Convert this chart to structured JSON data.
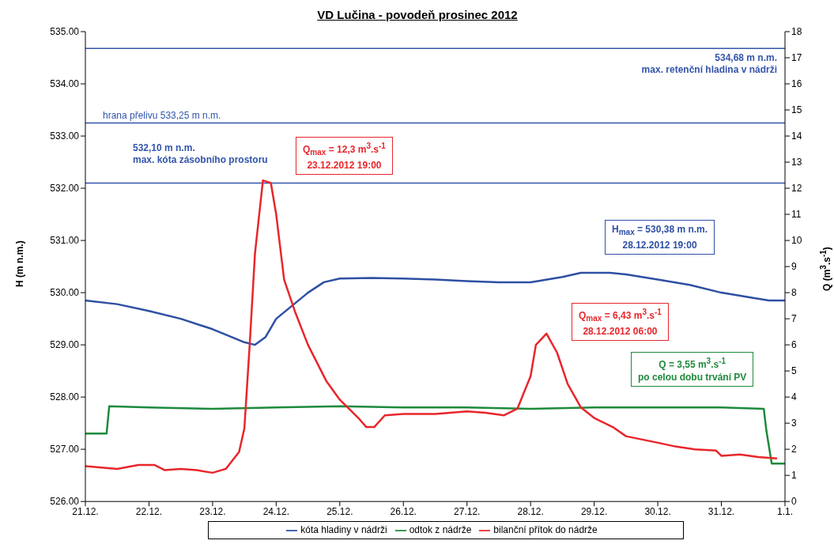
{
  "chart_data": {
    "type": "line",
    "title": "VD Lučina - povodeň prosinec 2012",
    "ylabel": "H (m n.m.)",
    "y2label": "Q (m$^{3}$.s$^{-1}$)",
    "xlim": [
      "2012-12-21",
      "2013-01-01"
    ],
    "xticks": [
      {
        "value": "2012-12-21",
        "label": "21.12."
      },
      {
        "value": "2012-12-22",
        "label": "22.12."
      },
      {
        "value": "2012-12-23",
        "label": "23.12."
      },
      {
        "value": "2012-12-24",
        "label": "24.12."
      },
      {
        "value": "2012-12-25",
        "label": "25.12."
      },
      {
        "value": "2012-12-26",
        "label": "26.12."
      },
      {
        "value": "2012-12-27",
        "label": "27.12."
      },
      {
        "value": "2012-12-28",
        "label": "28.12."
      },
      {
        "value": "2012-12-29",
        "label": "29.12."
      },
      {
        "value": "2012-12-30",
        "label": "30.12."
      },
      {
        "value": "2012-12-31",
        "label": "31.12."
      },
      {
        "value": "2013-01-01",
        "label": "1.1."
      }
    ],
    "ylim": [
      526,
      535
    ],
    "yticks": [
      {
        "value": 526,
        "label": "526.00"
      },
      {
        "value": 527,
        "label": "527.00"
      },
      {
        "value": 528,
        "label": "528.00"
      },
      {
        "value": 529,
        "label": "529.00"
      },
      {
        "value": 530,
        "label": "530.00"
      },
      {
        "value": 531,
        "label": "531.00"
      },
      {
        "value": 532,
        "label": "532.00"
      },
      {
        "value": 533,
        "label": "533.00"
      },
      {
        "value": 534,
        "label": "534.00"
      },
      {
        "value": 535,
        "label": "535.00"
      }
    ],
    "y2lim": [
      0,
      18
    ],
    "y2ticks": [
      0,
      1,
      2,
      3,
      4,
      5,
      6,
      7,
      8,
      9,
      10,
      11,
      12,
      13,
      14,
      15,
      16,
      17,
      18
    ],
    "legend": "bottom",
    "marker": "none",
    "line_style": "solid",
    "series": [
      {
        "name": "kóta hladiny v nádrži",
        "color": "#2e4fa3",
        "x": [
          "2012-12-21T00:00",
          "2012-12-21T12:00",
          "2012-12-22T00:00",
          "2012-12-22T12:00",
          "2012-12-23T00:00",
          "2012-12-23T12:00",
          "2012-12-23T16:00",
          "2012-12-23T20:00",
          "2012-12-24T00:00",
          "2012-12-24T06:00",
          "2012-12-24T12:00",
          "2012-12-24T18:00",
          "2012-12-25T00:00",
          "2012-12-25T12:00",
          "2012-12-26T00:00",
          "2012-12-26T12:00",
          "2012-12-27T00:00",
          "2012-12-27T12:00",
          "2012-12-28T00:00",
          "2012-12-28T12:00",
          "2012-12-28T19:00",
          "2012-12-29T06:00",
          "2012-12-29T12:00",
          "2012-12-30T00:00",
          "2012-12-30T12:00",
          "2012-12-31T00:00",
          "2012-12-31T12:00",
          "2012-12-31T18:00",
          "2013-01-01T00:00"
        ],
        "values": [
          529.85,
          529.78,
          529.65,
          529.5,
          529.3,
          529.05,
          529.0,
          529.15,
          529.5,
          529.75,
          530.0,
          530.2,
          530.27,
          530.28,
          530.27,
          530.25,
          530.22,
          530.2,
          530.2,
          530.3,
          530.38,
          530.38,
          530.35,
          530.25,
          530.15,
          530.0,
          529.9,
          529.85,
          529.85
        ]
      },
      {
        "name": "odtok z nádrže",
        "color": "#1e8a3c",
        "axis": "y2",
        "x": [
          "2012-12-21T00:00",
          "2012-12-21T08:00",
          "2012-12-21T09:00",
          "2012-12-22T00:00",
          "2012-12-23T00:00",
          "2012-12-24T00:00",
          "2012-12-25T00:00",
          "2012-12-26T00:00",
          "2012-12-27T00:00",
          "2012-12-28T00:00",
          "2012-12-29T00:00",
          "2012-12-30T00:00",
          "2012-12-31T00:00",
          "2012-12-31T16:00",
          "2012-12-31T17:00",
          "2012-12-31T19:00",
          "2013-01-01T00:00"
        ],
        "values": [
          2.6,
          2.6,
          3.65,
          3.6,
          3.55,
          3.6,
          3.65,
          3.6,
          3.6,
          3.55,
          3.6,
          3.6,
          3.6,
          3.55,
          2.7,
          1.45,
          1.45
        ]
      },
      {
        "name": "bilanční přítok do nádrže",
        "color": "#e8262b",
        "axis": "y2",
        "x": [
          "2012-12-21T00:00",
          "2012-12-21T12:00",
          "2012-12-21T20:00",
          "2012-12-22T02:00",
          "2012-12-22T06:00",
          "2012-12-22T12:00",
          "2012-12-22T18:00",
          "2012-12-23T00:00",
          "2012-12-23T05:00",
          "2012-12-23T10:00",
          "2012-12-23T12:00",
          "2012-12-23T14:00",
          "2012-12-23T16:00",
          "2012-12-23T19:00",
          "2012-12-23T22:00",
          "2012-12-24T00:00",
          "2012-12-24T03:00",
          "2012-12-24T07:00",
          "2012-12-24T12:00",
          "2012-12-24T19:00",
          "2012-12-25T00:00",
          "2012-12-25T07:00",
          "2012-12-25T10:00",
          "2012-12-25T13:00",
          "2012-12-25T17:00",
          "2012-12-26T00:00",
          "2012-12-26T12:00",
          "2012-12-27T00:00",
          "2012-12-27T07:00",
          "2012-12-27T14:00",
          "2012-12-27T19:00",
          "2012-12-28T00:00",
          "2012-12-28T02:00",
          "2012-12-28T06:00",
          "2012-12-28T10:00",
          "2012-12-28T14:00",
          "2012-12-28T19:00",
          "2012-12-29T00:00",
          "2012-12-29T07:00",
          "2012-12-29T12:00",
          "2012-12-30T00:00",
          "2012-12-30T07:00",
          "2012-12-30T14:00",
          "2012-12-30T22:00",
          "2012-12-31T00:00",
          "2012-12-31T07:00",
          "2012-12-31T14:00",
          "2012-12-31T21:00"
        ],
        "values": [
          1.35,
          1.25,
          1.4,
          1.4,
          1.2,
          1.25,
          1.2,
          1.1,
          1.25,
          1.9,
          2.8,
          6.0,
          9.5,
          12.3,
          12.2,
          11.0,
          8.5,
          7.3,
          6.0,
          4.6,
          3.9,
          3.2,
          2.85,
          2.85,
          3.3,
          3.35,
          3.35,
          3.45,
          3.4,
          3.3,
          3.55,
          4.8,
          6.0,
          6.43,
          5.7,
          4.5,
          3.6,
          3.2,
          2.85,
          2.5,
          2.25,
          2.1,
          2.0,
          1.95,
          1.75,
          1.8,
          1.7,
          1.65
        ]
      }
    ],
    "ref_lines": [
      {
        "axis": "y",
        "value": 534.68,
        "label": "534,68 m n.m.\nmax. retenční hladina v nádrži",
        "color": "#3355aa"
      },
      {
        "axis": "y",
        "value": 533.25,
        "label": "hrana přelivu 533,25 m n.m.",
        "color": "#3355aa"
      },
      {
        "axis": "y",
        "value": 532.1,
        "label": "532,10 m n.m.\nmax. kóta zásobního prostoru",
        "color": "#3355aa"
      }
    ],
    "annotations": [
      "Q$_{max}$ = 12,3 m$^{3}$.s$^{-1}$\n23.12.2012 19:00",
      "H$_{max}$ = 530,38 m n.m.\n28.12.2012 19:00",
      "Q$_{max}$ = 6,43 m$^{3}$.s$^{-1}$\n28.12.2012 06:00",
      "Q = 3,55 m$^{3}$.s$^{-1}$\npo celou dobu trvání PV"
    ]
  }
}
